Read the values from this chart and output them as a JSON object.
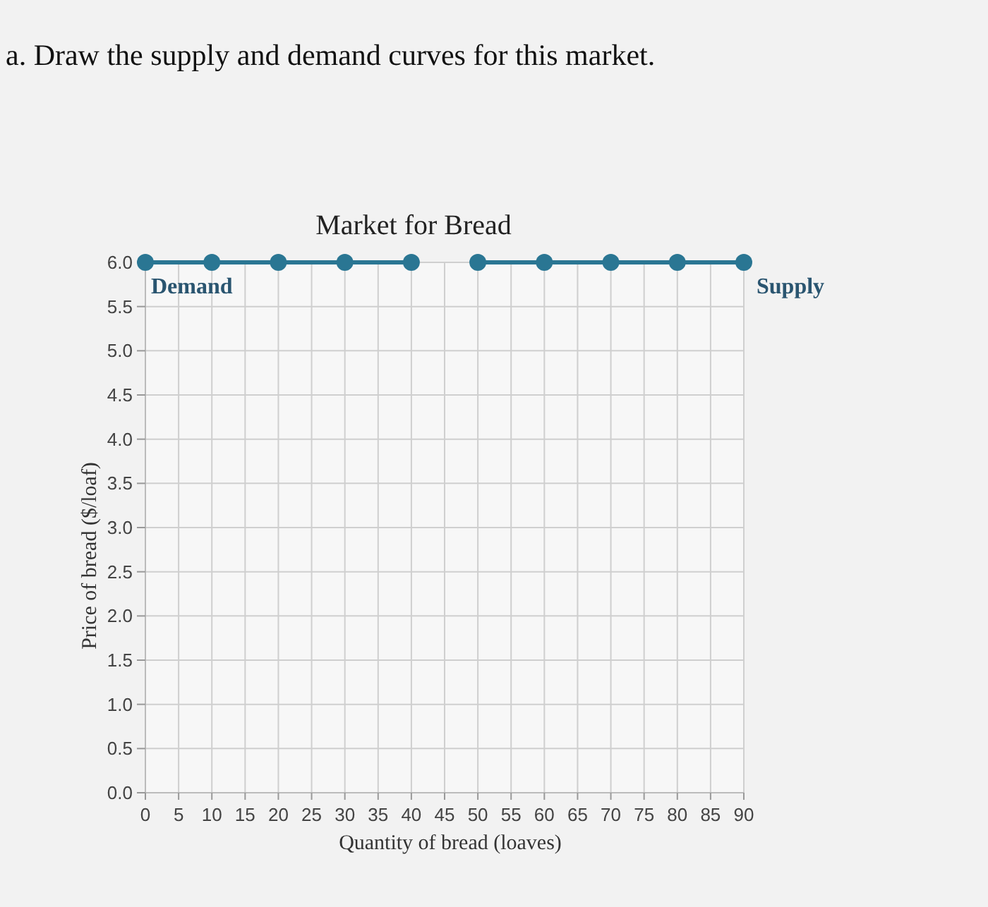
{
  "chart_data": {
    "type": "line",
    "title": "Market for Bread",
    "xlabel": "Quantity of bread (loaves)",
    "ylabel": "Price of bread ($/loaf)",
    "annotations": [
      "a. Draw the supply and demand curves for this market."
    ],
    "series": [
      {
        "name": "Demand",
        "color": "#2a7693",
        "x": [
          0,
          10,
          20,
          30,
          40
        ],
        "values": [
          6,
          6,
          6,
          6,
          6
        ]
      },
      {
        "name": "Supply",
        "color": "#2a7693",
        "x": [
          50,
          60,
          70,
          80,
          90
        ],
        "values": [
          6,
          6,
          6,
          6,
          6
        ]
      }
    ],
    "xlim": [
      0,
      90
    ],
    "xticks": [
      0,
      5,
      10,
      15,
      20,
      25,
      30,
      35,
      40,
      45,
      50,
      55,
      60,
      65,
      70,
      75,
      80,
      85,
      90
    ],
    "ylim": [
      0,
      6
    ],
    "yticks": [
      {
        "value": 0,
        "label": "0.0"
      },
      {
        "value": 0.5,
        "label": "0.5"
      },
      {
        "value": 1,
        "label": "1.0"
      },
      {
        "value": 1.5,
        "label": "1.5"
      },
      {
        "value": 2,
        "label": "2.0"
      },
      {
        "value": 2.5,
        "label": "2.5"
      },
      {
        "value": 3,
        "label": "3.0"
      },
      {
        "value": 3.5,
        "label": "3.5"
      },
      {
        "value": 4,
        "label": "4.0"
      },
      {
        "value": 4.5,
        "label": "4.5"
      },
      {
        "value": 5,
        "label": "5.0"
      },
      {
        "value": 5.5,
        "label": "5.5"
      },
      {
        "value": 6,
        "label": "6.0"
      }
    ],
    "grid": true,
    "marker": "circle",
    "line_style": "solid"
  }
}
